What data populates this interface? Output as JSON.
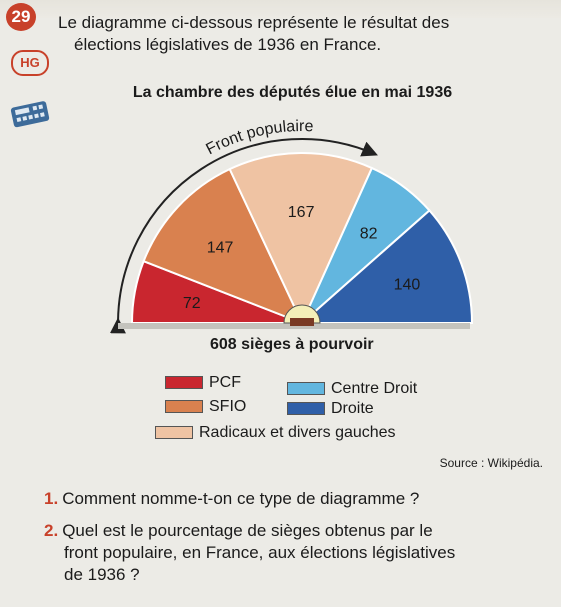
{
  "exercise": {
    "number": "29",
    "subject_badge": "HG",
    "intro_line1": "Le diagramme ci-dessous représente le résultat des",
    "intro_line2": "élections législatives de 1936 en France."
  },
  "chart_data": {
    "type": "pie",
    "subtype": "parliament-semicircle",
    "title": "La chambre des députés élue en mai 1936",
    "annotation_arrow": "Front populaire",
    "subtitle": "608 sièges à pourvoir",
    "total": 608,
    "categories": [
      "PCF",
      "SFIO",
      "Radicaux et divers gauches",
      "Centre Droit",
      "Droite"
    ],
    "values": [
      72,
      147,
      167,
      82,
      140
    ],
    "labels": [
      "72",
      "147",
      "167",
      "82",
      "140"
    ],
    "colors": [
      "#c9262f",
      "#d9814f",
      "#efc3a3",
      "#62b6df",
      "#2f5fa8"
    ],
    "legend_placement": "bottom"
  },
  "legend": [
    {
      "label": "PCF",
      "color": "#c9262f"
    },
    {
      "label": "Centre Droit",
      "color": "#62b6df"
    },
    {
      "label": "SFIO",
      "color": "#d9814f"
    },
    {
      "label": "Droite",
      "color": "#2f5fa8"
    },
    {
      "label": "Radicaux et divers gauches",
      "color": "#efc3a3"
    }
  ],
  "source": "Source : Wikipédia.",
  "questions": [
    {
      "n": "1.",
      "text": "Comment nomme-t-on ce type de diagramme ?"
    },
    {
      "n": "2.",
      "text_line1": "Quel est le pourcentage de sièges obtenus par le",
      "text_line2": "front populaire, en France, aux élections législatives",
      "text_line3": "de 1936 ?"
    }
  ],
  "icons": [
    "calculator-icon"
  ]
}
